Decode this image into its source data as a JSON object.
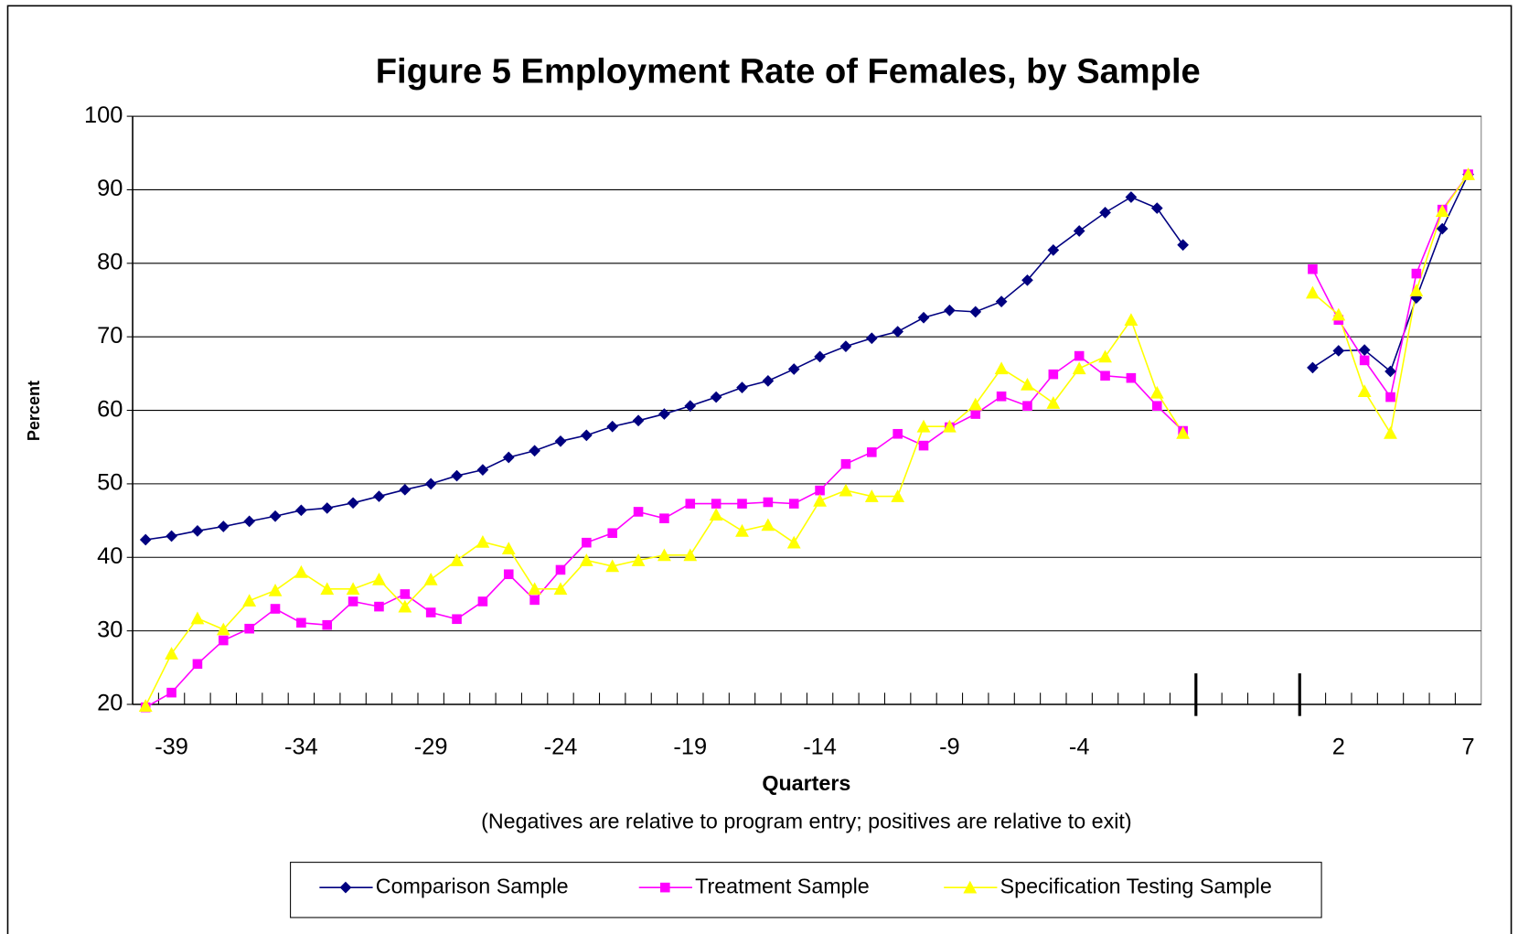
{
  "chart_data": {
    "type": "line",
    "title": "Figure 5  Employment Rate of Females, by Sample",
    "y_label": "Percent",
    "x_label": "Quarters",
    "x_note": "(Negatives are relative to program entry; positives are relative to exit)",
    "categories": [
      null,
      "-39",
      null,
      null,
      null,
      null,
      "-34",
      null,
      null,
      null,
      null,
      "-29",
      null,
      null,
      null,
      null,
      "-24",
      null,
      null,
      null,
      null,
      "-19",
      null,
      null,
      null,
      null,
      "-14",
      null,
      null,
      null,
      null,
      "-9",
      null,
      null,
      null,
      null,
      "-4",
      null,
      null,
      null,
      null,
      null,
      null,
      null,
      null,
      null,
      "2",
      null,
      null,
      null,
      null,
      "7"
    ],
    "series": [
      {
        "name": "Comparison Sample",
        "color": "#000080",
        "marker": "diamond",
        "values": [
          42.4,
          42.9,
          43.6,
          44.2,
          44.9,
          45.6,
          46.4,
          46.7,
          47.4,
          48.3,
          49.2,
          50.0,
          51.1,
          51.9,
          53.6,
          54.5,
          55.8,
          56.6,
          57.8,
          58.6,
          59.5,
          60.6,
          61.8,
          63.1,
          64.0,
          65.6,
          67.3,
          68.7,
          69.8,
          70.7,
          72.6,
          73.6,
          73.4,
          74.8,
          77.7,
          81.8,
          84.4,
          86.9,
          89.0,
          87.5,
          82.5,
          null,
          null,
          null,
          null,
          65.8,
          68.1,
          68.2,
          65.3,
          75.3,
          84.7,
          92.1
        ]
      },
      {
        "name": "Treatment Sample",
        "color": "#ff00ff",
        "marker": "square",
        "values": [
          19.6,
          21.6,
          25.5,
          28.7,
          30.3,
          33.0,
          31.1,
          30.8,
          34.0,
          33.3,
          35.0,
          32.5,
          31.6,
          34.0,
          37.7,
          34.2,
          38.3,
          42.0,
          43.3,
          46.2,
          45.3,
          47.3,
          47.3,
          47.3,
          47.5,
          47.3,
          49.1,
          52.7,
          54.3,
          56.8,
          55.2,
          57.7,
          59.5,
          61.9,
          60.6,
          64.9,
          67.4,
          64.7,
          64.4,
          60.6,
          57.2,
          null,
          null,
          null,
          null,
          79.2,
          72.3,
          66.8,
          61.8,
          78.6,
          87.3,
          92.1
        ]
      },
      {
        "name": "Specification Testing Sample",
        "color": "#ffff00",
        "marker": "triangle",
        "values": [
          19.8,
          26.9,
          31.7,
          30.2,
          34.1,
          35.5,
          38.0,
          35.7,
          35.7,
          37.0,
          33.3,
          37.0,
          39.6,
          42.1,
          41.2,
          35.7,
          35.7,
          39.6,
          38.8,
          39.6,
          40.3,
          40.3,
          45.8,
          43.6,
          44.4,
          42.0,
          47.7,
          49.1,
          48.3,
          48.3,
          57.8,
          57.8,
          60.8,
          65.7,
          63.5,
          61.0,
          65.7,
          67.3,
          72.3,
          62.4,
          56.9,
          null,
          null,
          null,
          null,
          76.0,
          73.0,
          62.6,
          56.9,
          76.3,
          87.1,
          92.1
        ]
      }
    ],
    "ylim": [
      20,
      100
    ],
    "yticks": [
      20,
      30,
      40,
      50,
      60,
      70,
      80,
      90,
      100
    ],
    "grid": true,
    "legend": "bottom"
  }
}
